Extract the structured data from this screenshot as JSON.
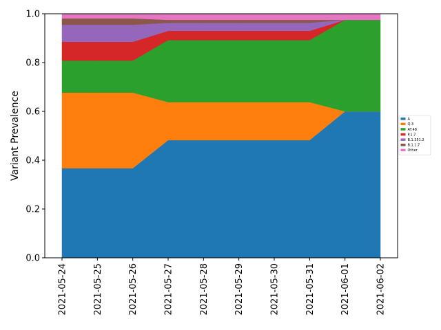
{
  "chart_data": {
    "type": "area",
    "stacked": true,
    "x": [
      "2021-05-24",
      "2021-05-25",
      "2021-05-26",
      "2021-05-27",
      "2021-05-28",
      "2021-05-29",
      "2021-05-30",
      "2021-05-31",
      "2021-06-01",
      "2021-06-02"
    ],
    "ylabel": "Variant Prevalence",
    "xlabel": "",
    "ylim": [
      0,
      1.0
    ],
    "yticks": [
      "0.0",
      "0.2",
      "0.4",
      "0.6",
      "0.8",
      "1.0"
    ],
    "grid": false,
    "legend_position": "right",
    "series": [
      {
        "name": "A",
        "color": "#1f77b4",
        "values": [
          0.367,
          0.367,
          0.367,
          0.482,
          0.482,
          0.482,
          0.482,
          0.482,
          0.6,
          0.6
        ]
      },
      {
        "name": "Q.3",
        "color": "#ff7f0e",
        "values": [
          0.31,
          0.31,
          0.31,
          0.156,
          0.156,
          0.156,
          0.156,
          0.156,
          0.0,
          0.0
        ]
      },
      {
        "name": "AT.48",
        "color": "#2ca02c",
        "values": [
          0.131,
          0.131,
          0.131,
          0.254,
          0.254,
          0.254,
          0.254,
          0.254,
          0.375,
          0.375
        ]
      },
      {
        "name": "P.1.7",
        "color": "#d62728",
        "values": [
          0.077,
          0.077,
          0.077,
          0.038,
          0.038,
          0.038,
          0.038,
          0.038,
          0.0,
          0.0
        ]
      },
      {
        "name": "B.1.351.2",
        "color": "#9467bd",
        "values": [
          0.07,
          0.07,
          0.07,
          0.033,
          0.033,
          0.033,
          0.033,
          0.033,
          0.0,
          0.0
        ]
      },
      {
        "name": "B.1.1.7",
        "color": "#8c564b",
        "values": [
          0.026,
          0.026,
          0.026,
          0.012,
          0.012,
          0.012,
          0.012,
          0.012,
          0.0,
          0.0
        ]
      },
      {
        "name": "Other",
        "color": "#e377c2",
        "values": [
          0.019,
          0.019,
          0.019,
          0.025,
          0.025,
          0.025,
          0.025,
          0.025,
          0.025,
          0.025
        ]
      }
    ]
  }
}
